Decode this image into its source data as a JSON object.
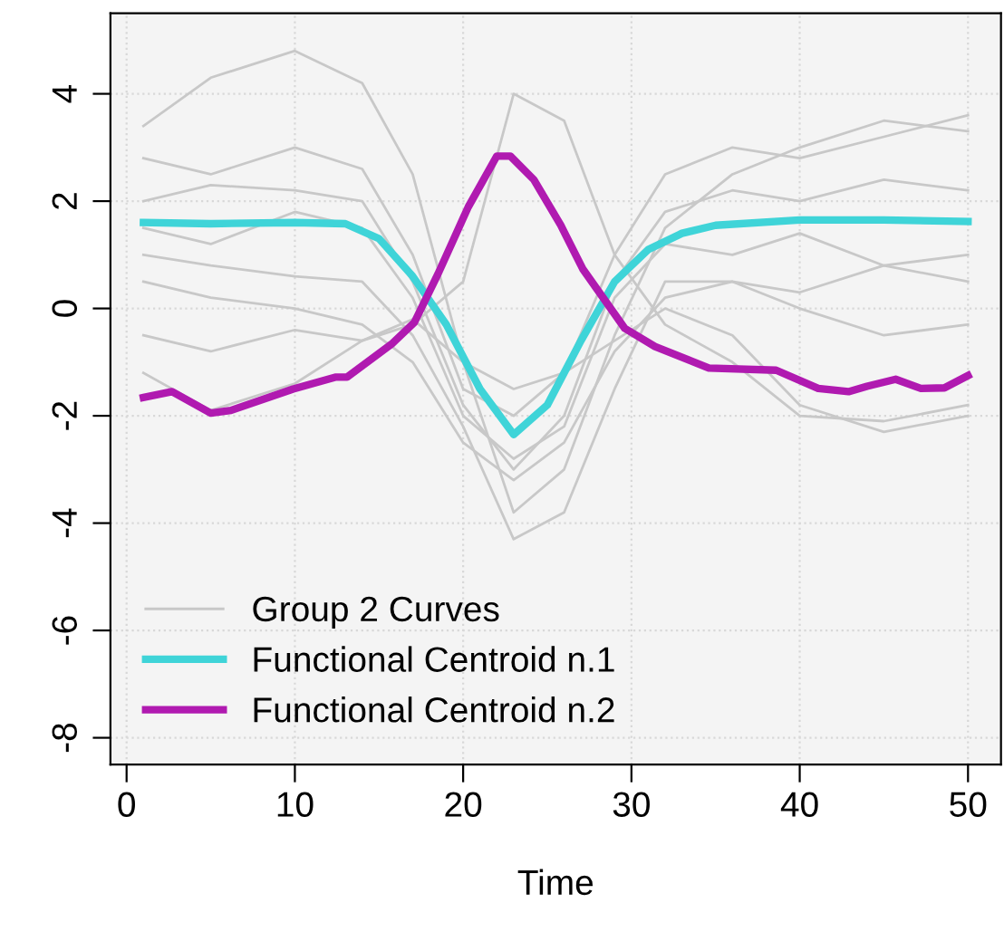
{
  "chart_data": {
    "type": "line",
    "xlabel": "Time",
    "xlim": [
      -0.96,
      51.96
    ],
    "ylim": [
      -8.5,
      5.5
    ],
    "xticks": [
      0,
      10,
      20,
      30,
      40,
      50
    ],
    "yticks": [
      -8,
      -6,
      -4,
      -2,
      0,
      2,
      4
    ],
    "grid": true,
    "legend": "bottom left",
    "line_style": "solid",
    "marker": "none",
    "series": [
      {
        "name": "Group 2 Curves",
        "color": "#c8c8c8",
        "x": [
          1,
          5,
          10,
          14,
          17,
          20,
          23,
          26,
          29,
          32,
          36,
          40,
          45,
          50
        ],
        "values": [
          2.0,
          2.3,
          2.2,
          2.0,
          0.5,
          -1.8,
          -3.0,
          -2.0,
          0.5,
          1.8,
          2.2,
          2.0,
          2.4,
          2.2
        ]
      },
      {
        "color": "#c8c8c8",
        "x": [
          1,
          5,
          10,
          14,
          17,
          20,
          23,
          26,
          29,
          32,
          36,
          40,
          45,
          50
        ],
        "values": [
          3.4,
          4.3,
          4.8,
          4.2,
          2.5,
          -1.0,
          -3.8,
          -3.0,
          -0.5,
          1.5,
          2.5,
          3.0,
          3.5,
          3.3
        ]
      },
      {
        "color": "#c8c8c8",
        "x": [
          1,
          5,
          10,
          14,
          17,
          20,
          23,
          26,
          29,
          32,
          36,
          40,
          45,
          50
        ],
        "values": [
          0.5,
          0.2,
          0.0,
          -0.3,
          -1.0,
          -2.5,
          -3.2,
          -2.5,
          -0.8,
          0.2,
          0.5,
          0.3,
          0.8,
          0.5
        ]
      },
      {
        "color": "#c8c8c8",
        "x": [
          1,
          5,
          10,
          14,
          17,
          20,
          23,
          26,
          29,
          32,
          36,
          40,
          45,
          50
        ],
        "values": [
          -1.2,
          -1.9,
          -1.4,
          -0.6,
          -0.3,
          0.5,
          4.0,
          3.5,
          1.0,
          -0.3,
          -1.0,
          -2.0,
          -2.1,
          -1.8
        ]
      },
      {
        "color": "#c8c8c8",
        "x": [
          1,
          5,
          10,
          14,
          17,
          20,
          23,
          26,
          29,
          32,
          36,
          40,
          45,
          50
        ],
        "values": [
          1.0,
          0.8,
          0.6,
          0.5,
          -0.5,
          -2.2,
          -4.3,
          -3.8,
          -1.5,
          0.5,
          0.5,
          0.0,
          -0.5,
          -0.3
        ]
      },
      {
        "color": "#c8c8c8",
        "x": [
          1,
          5,
          10,
          14,
          17,
          20,
          23,
          26,
          29,
          32,
          36,
          40,
          45,
          50
        ],
        "values": [
          2.8,
          2.5,
          3.0,
          2.6,
          1.0,
          -1.5,
          -2.0,
          -1.2,
          1.0,
          2.5,
          3.0,
          2.8,
          3.2,
          3.6
        ]
      },
      {
        "color": "#c8c8c8",
        "x": [
          1,
          5,
          10,
          14,
          17,
          20,
          23,
          26,
          29,
          32,
          36,
          40,
          45,
          50
        ],
        "values": [
          1.5,
          1.2,
          1.8,
          1.5,
          0.2,
          -2.0,
          -2.8,
          -2.2,
          0.2,
          1.2,
          1.0,
          1.4,
          0.8,
          1.0
        ]
      },
      {
        "color": "#c8c8c8",
        "x": [
          1,
          5,
          10,
          14,
          17,
          20,
          23,
          26,
          29,
          32,
          36,
          40,
          45,
          50
        ],
        "values": [
          -0.5,
          -0.8,
          -0.4,
          -0.6,
          -0.2,
          -1.0,
          -1.5,
          -1.2,
          -0.6,
          0.0,
          -0.5,
          -1.8,
          -2.3,
          -2.0
        ]
      },
      {
        "name": "Functional Centroid n.1",
        "color": "#3fd4d8",
        "x": [
          1,
          5,
          10,
          13,
          15,
          17,
          19,
          21,
          23,
          25,
          27,
          29,
          31,
          33,
          35,
          40,
          45,
          50
        ],
        "values": [
          1.6,
          1.58,
          1.6,
          1.58,
          1.3,
          0.6,
          -0.3,
          -1.5,
          -2.35,
          -1.8,
          -0.6,
          0.5,
          1.1,
          1.4,
          1.55,
          1.65,
          1.65,
          1.62
        ]
      },
      {
        "name": "Functional Centroid n.2",
        "color": "#b01ab0",
        "x": [
          1,
          2.7,
          5,
          6.2,
          9.9,
          12.4,
          13.1,
          15.8,
          17.1,
          18.5,
          20.3,
          22,
          22.8,
          24.2,
          25.8,
          27.1,
          29.6,
          31.4,
          34.6,
          38.6,
          41.1,
          42.9,
          44,
          45.7,
          47.2,
          48.6,
          50
        ],
        "values": [
          -1.66,
          -1.55,
          -1.95,
          -1.9,
          -1.5,
          -1.28,
          -1.28,
          -0.65,
          -0.26,
          0.64,
          1.89,
          2.84,
          2.84,
          2.4,
          1.55,
          0.74,
          -0.37,
          -0.71,
          -1.11,
          -1.15,
          -1.49,
          -1.55,
          -1.45,
          -1.32,
          -1.49,
          -1.48,
          -1.25
        ]
      }
    ]
  }
}
